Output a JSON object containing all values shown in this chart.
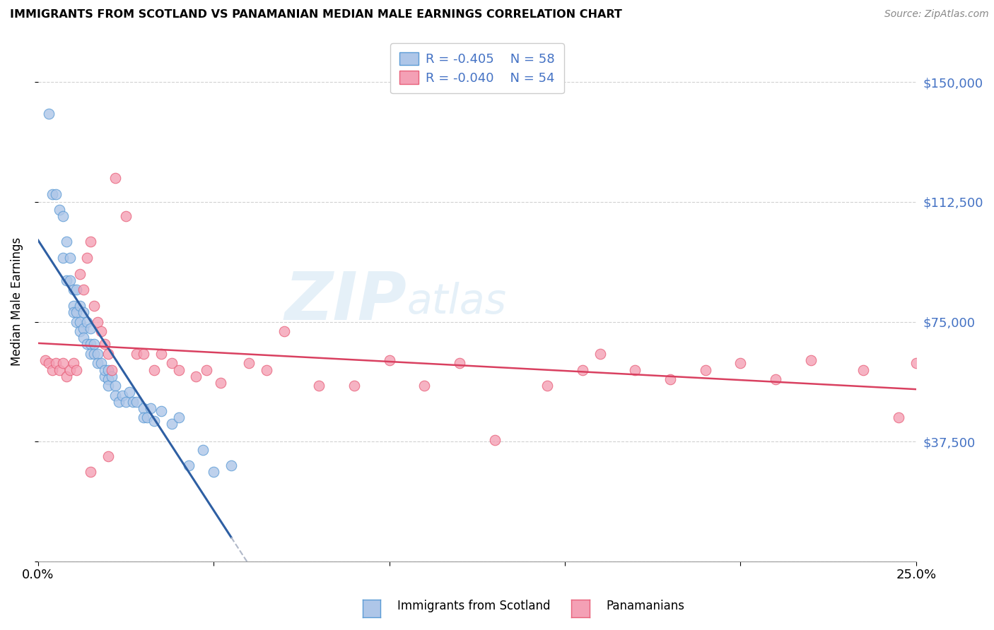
{
  "title": "IMMIGRANTS FROM SCOTLAND VS PANAMANIAN MEDIAN MALE EARNINGS CORRELATION CHART",
  "source": "Source: ZipAtlas.com",
  "ylabel": "Median Male Earnings",
  "xlim": [
    0.0,
    0.25
  ],
  "ylim": [
    0,
    162500
  ],
  "yticks": [
    0,
    37500,
    75000,
    112500,
    150000
  ],
  "ytick_labels": [
    "",
    "$37,500",
    "$75,000",
    "$112,500",
    "$150,000"
  ],
  "xticks": [
    0.0,
    0.05,
    0.1,
    0.15,
    0.2,
    0.25
  ],
  "xtick_labels": [
    "0.0%",
    "",
    "",
    "",
    "",
    "25.0%"
  ],
  "scotland_color": "#aec6e8",
  "panama_color": "#f4a0b5",
  "scotland_edge_color": "#5b9bd5",
  "panama_edge_color": "#e8607a",
  "trend_scotland_color": "#2e5fa3",
  "trend_panama_color": "#d94060",
  "trend_dash_color": "#b0b8c8",
  "legend_label_scotland": "Immigrants from Scotland",
  "legend_label_panama": "Panamanians",
  "watermark_zip": "ZIP",
  "watermark_atlas": "atlas",
  "scotland_x": [
    0.003,
    0.004,
    0.005,
    0.006,
    0.007,
    0.007,
    0.008,
    0.008,
    0.009,
    0.009,
    0.01,
    0.01,
    0.01,
    0.011,
    0.011,
    0.011,
    0.012,
    0.012,
    0.012,
    0.013,
    0.013,
    0.013,
    0.014,
    0.014,
    0.015,
    0.015,
    0.015,
    0.016,
    0.016,
    0.017,
    0.017,
    0.018,
    0.019,
    0.019,
    0.02,
    0.02,
    0.02,
    0.021,
    0.022,
    0.022,
    0.023,
    0.024,
    0.025,
    0.026,
    0.027,
    0.028,
    0.03,
    0.03,
    0.031,
    0.032,
    0.033,
    0.035,
    0.038,
    0.04,
    0.043,
    0.047,
    0.05,
    0.055
  ],
  "scotland_y": [
    140000,
    115000,
    115000,
    110000,
    108000,
    95000,
    100000,
    88000,
    95000,
    88000,
    85000,
    80000,
    78000,
    85000,
    78000,
    75000,
    80000,
    75000,
    72000,
    78000,
    73000,
    70000,
    75000,
    68000,
    73000,
    68000,
    65000,
    68000,
    65000,
    65000,
    62000,
    62000,
    58000,
    60000,
    60000,
    57000,
    55000,
    58000,
    55000,
    52000,
    50000,
    52000,
    50000,
    53000,
    50000,
    50000,
    48000,
    45000,
    45000,
    48000,
    44000,
    47000,
    43000,
    45000,
    30000,
    35000,
    28000,
    30000
  ],
  "panama_x": [
    0.002,
    0.003,
    0.004,
    0.005,
    0.006,
    0.007,
    0.008,
    0.009,
    0.01,
    0.011,
    0.012,
    0.013,
    0.014,
    0.015,
    0.016,
    0.017,
    0.018,
    0.019,
    0.02,
    0.021,
    0.022,
    0.025,
    0.028,
    0.03,
    0.033,
    0.035,
    0.038,
    0.04,
    0.045,
    0.048,
    0.052,
    0.06,
    0.065,
    0.07,
    0.08,
    0.09,
    0.1,
    0.11,
    0.12,
    0.13,
    0.145,
    0.155,
    0.16,
    0.17,
    0.18,
    0.19,
    0.2,
    0.21,
    0.22,
    0.235,
    0.245,
    0.25,
    0.015,
    0.02
  ],
  "panama_y": [
    63000,
    62000,
    60000,
    62000,
    60000,
    62000,
    58000,
    60000,
    62000,
    60000,
    90000,
    85000,
    95000,
    100000,
    80000,
    75000,
    72000,
    68000,
    65000,
    60000,
    120000,
    108000,
    65000,
    65000,
    60000,
    65000,
    62000,
    60000,
    58000,
    60000,
    56000,
    62000,
    60000,
    72000,
    55000,
    55000,
    63000,
    55000,
    62000,
    38000,
    55000,
    60000,
    65000,
    60000,
    57000,
    60000,
    62000,
    57000,
    63000,
    60000,
    45000,
    62000,
    28000,
    33000
  ]
}
